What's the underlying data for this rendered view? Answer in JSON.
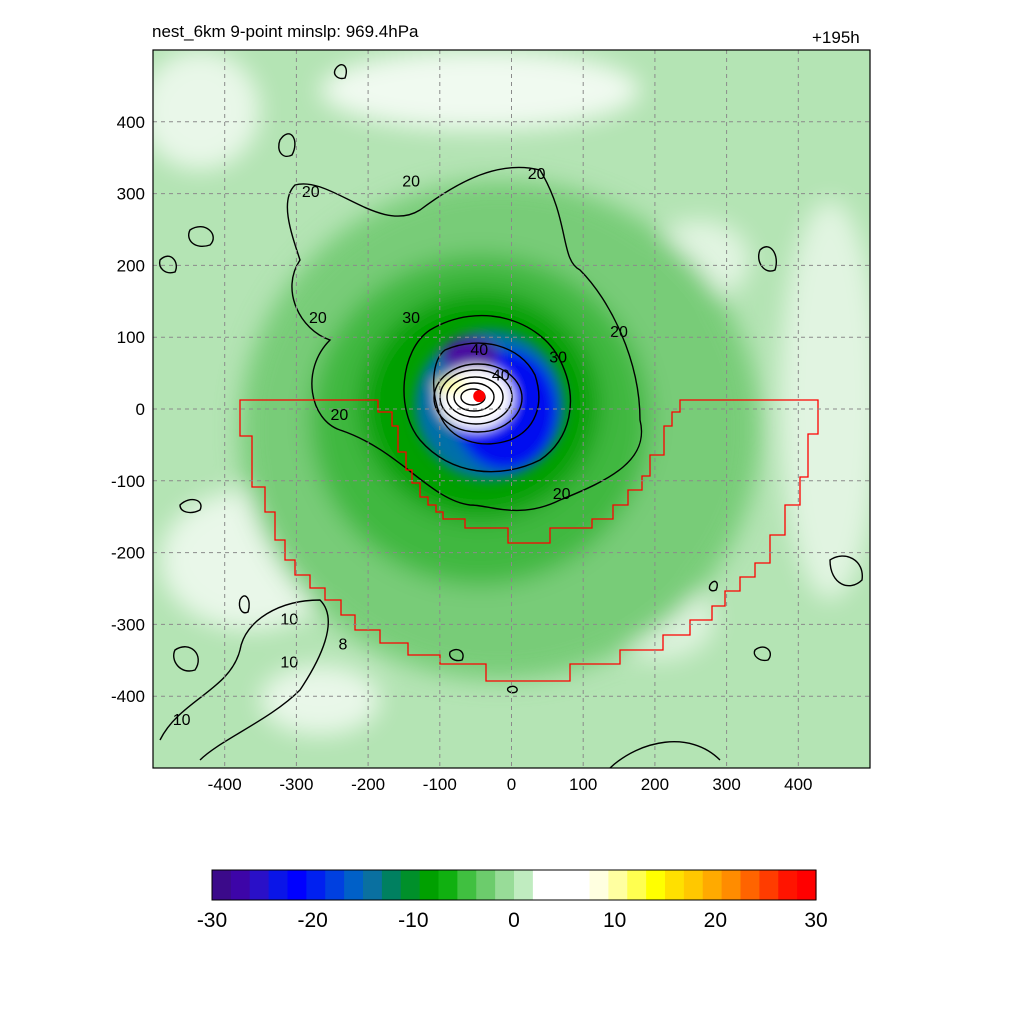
{
  "title_left": "nest_6km  9-point minslp: 969.4hPa",
  "title_right": "+195h",
  "chart_data": {
    "type": "heatmap",
    "title": "nest_6km  9-point minslp: 969.4hPa",
    "time_label": "+195h",
    "xlim": [
      -500,
      500
    ],
    "ylim": [
      -500,
      500
    ],
    "x_ticks": [
      -400,
      -300,
      -200,
      -100,
      0,
      100,
      200,
      300,
      400
    ],
    "y_ticks": [
      400,
      300,
      200,
      100,
      0,
      -100,
      -200,
      -300,
      -400
    ],
    "grid": true,
    "center": {
      "x": -45,
      "y": 18,
      "color": "#ff0000"
    },
    "colorbar": {
      "range": [
        -30,
        30
      ],
      "ticks": [
        -30,
        -20,
        -10,
        0,
        10,
        20,
        30
      ],
      "colors": [
        "#3b0a8a",
        "#3d05a8",
        "#2a10c8",
        "#0a15e8",
        "#0000ff",
        "#0020f0",
        "#0040e0",
        "#0060c8",
        "#0a70a0",
        "#008060",
        "#00902a",
        "#00a000",
        "#10b010",
        "#40c040",
        "#6ccc6c",
        "#98dc98",
        "#c0ecc0",
        "#ffffff",
        "#ffffff",
        "#ffffff",
        "#ffffe0",
        "#ffffa0",
        "#ffff50",
        "#ffff00",
        "#ffe000",
        "#ffc800",
        "#ffaa00",
        "#ff8c00",
        "#ff6400",
        "#ff3c00",
        "#ff1400",
        "#ff0000"
      ]
    },
    "contour_labels": [
      {
        "text": "20",
        "x": -280,
        "y": 295
      },
      {
        "text": "20",
        "x": -140,
        "y": 310
      },
      {
        "text": "20",
        "x": 35,
        "y": 320
      },
      {
        "text": "20",
        "x": -270,
        "y": 120
      },
      {
        "text": "20",
        "x": 150,
        "y": 100
      },
      {
        "text": "20",
        "x": -240,
        "y": -15
      },
      {
        "text": "20",
        "x": 70,
        "y": -125
      },
      {
        "text": "30",
        "x": -140,
        "y": 120
      },
      {
        "text": "30",
        "x": 65,
        "y": 65
      },
      {
        "text": "40",
        "x": -45,
        "y": 75
      },
      {
        "text": "40",
        "x": -15,
        "y": 40
      },
      {
        "text": "10",
        "x": -310,
        "y": -300
      },
      {
        "text": "10",
        "x": -310,
        "y": -360
      },
      {
        "text": "10",
        "x": -460,
        "y": -440
      },
      {
        "text": "8",
        "x": -235,
        "y": -335
      }
    ],
    "region_outline_color": "#ff0000"
  }
}
